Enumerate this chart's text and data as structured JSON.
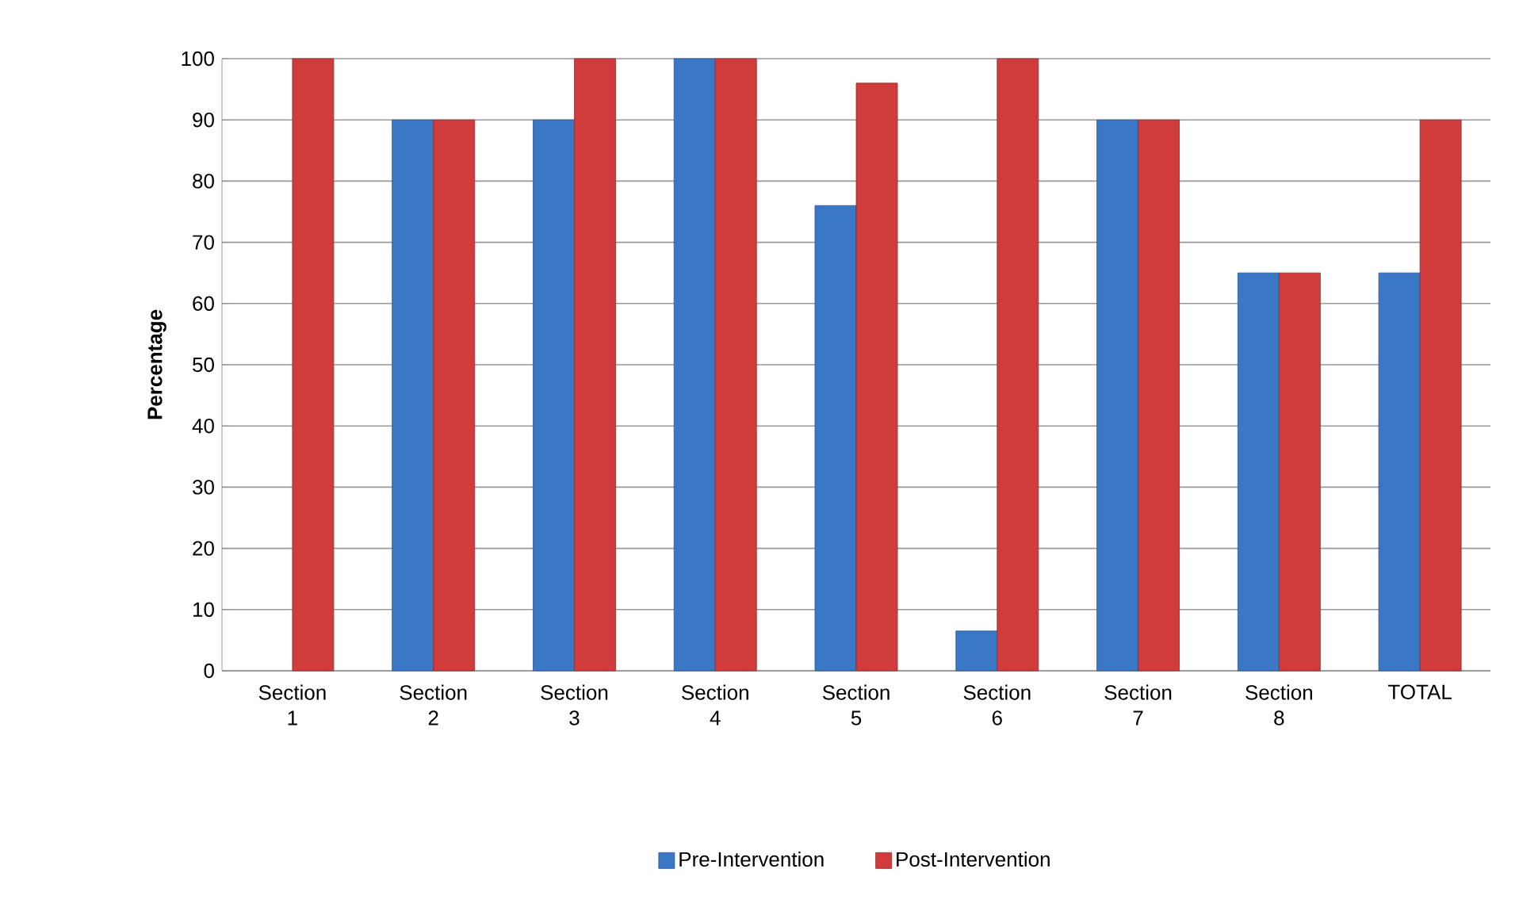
{
  "chart_data": {
    "type": "bar",
    "ylabel": "Percentage",
    "categories": [
      "Section 1",
      "Section 2",
      "Section 3",
      "Section 4",
      "Section 5",
      "Section 6",
      "Section 7",
      "Section 8",
      "TOTAL"
    ],
    "series": [
      {
        "name": "Pre-Intervention",
        "color": "#3a78c6",
        "values": [
          null,
          90,
          90,
          100,
          76,
          6.5,
          90,
          65,
          65
        ]
      },
      {
        "name": "Post-Intervention",
        "color": "#d03c3c",
        "values": [
          100,
          90,
          100,
          100,
          96,
          100,
          90,
          65,
          90
        ]
      }
    ],
    "ylim": [
      0,
      100
    ],
    "yticks": [
      0,
      10,
      20,
      30,
      40,
      50,
      60,
      70,
      80,
      90,
      100
    ],
    "grid": "y",
    "legend": "bottom"
  }
}
